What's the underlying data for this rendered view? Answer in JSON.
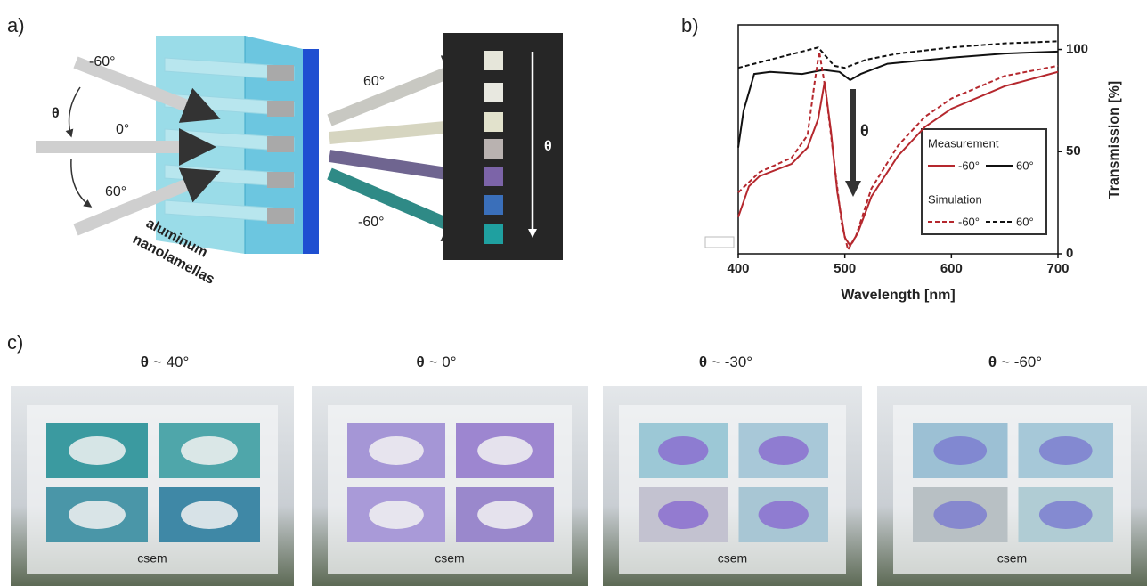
{
  "panels": {
    "a": "a)",
    "b": "b)",
    "c": "c)"
  },
  "diagram": {
    "incoming": [
      "-60°",
      "0°",
      "60°"
    ],
    "theta_in": "θ",
    "material": [
      "aluminum",
      "nanolamellas"
    ],
    "outgoing": [
      "60°",
      "-60°"
    ],
    "theta_out": "θ"
  },
  "chart_data": {
    "type": "line",
    "xlabel": "Wavelength [nm]",
    "ylabel": "Transmission [%]",
    "xlim": [
      400,
      700
    ],
    "xticks": [
      400,
      500,
      600,
      700
    ],
    "ylim": [
      0,
      112
    ],
    "yticks": [
      0,
      50,
      100
    ],
    "annotation": "θ",
    "groups": [
      {
        "name": "Measurement",
        "dashed": false,
        "series": [
          {
            "name": "-60°",
            "color": "#b5282e",
            "x": [
              400,
              410,
              420,
              450,
              465,
              475,
              481,
              487,
              493,
              500,
              505,
              512,
              525,
              550,
              575,
              600,
              650,
              700
            ],
            "values": [
              18,
              33,
              38,
              44,
              52,
              66,
              84,
              60,
              30,
              8,
              4,
              10,
              28,
              48,
              62,
              71,
              82,
              89
            ]
          },
          {
            "name": "60°",
            "color": "#111111",
            "x": [
              400,
              405,
              415,
              430,
              460,
              480,
              495,
              505,
              515,
              540,
              600,
              650,
              700
            ],
            "values": [
              52,
              70,
              88,
              89,
              88,
              90,
              89,
              85,
              88,
              93,
              96,
              98,
              99
            ]
          }
        ]
      },
      {
        "name": "Simulation",
        "dashed": true,
        "series": [
          {
            "name": "-60°",
            "color": "#b5282e",
            "x": [
              400,
              420,
              450,
              465,
              472,
              476,
              482,
              490,
              497,
              503,
              510,
              525,
              550,
              575,
              600,
              650,
              700
            ],
            "values": [
              30,
              40,
              47,
              58,
              85,
              99,
              80,
              45,
              15,
              2,
              8,
              32,
              53,
              67,
              76,
              87,
              92
            ]
          },
          {
            "name": "60°",
            "color": "#111111",
            "x": [
              400,
              430,
              460,
              475,
              490,
              500,
              520,
              550,
              600,
              650,
              700
            ],
            "values": [
              91,
              95,
              99,
              101,
              92,
              91,
              95,
              98,
              101,
              103,
              104
            ]
          }
        ]
      }
    ]
  },
  "photos": [
    {
      "symbol": "θ",
      "angle": "~ 40°",
      "logo": "csem"
    },
    {
      "symbol": "θ",
      "angle": "~ 0°",
      "logo": "csem"
    },
    {
      "symbol": "θ",
      "angle": "~ -30°",
      "logo": "csem"
    },
    {
      "symbol": "θ",
      "angle": "~ -60°",
      "logo": "csem"
    }
  ]
}
